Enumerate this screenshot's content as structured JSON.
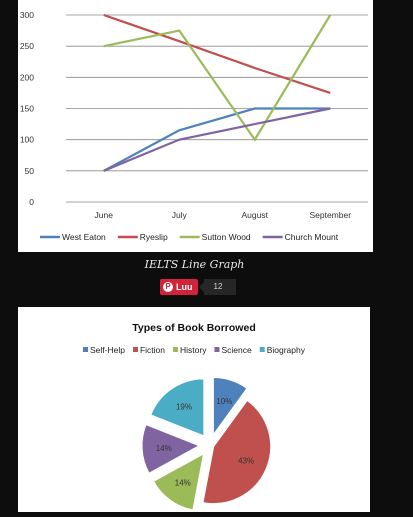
{
  "caption": "IELTS Line Graph",
  "share": {
    "label": "Luu",
    "count": "12"
  },
  "chart_data": [
    {
      "type": "line",
      "title": "",
      "xlabel": "",
      "ylabel": "",
      "categories": [
        "June",
        "July",
        "August",
        "September"
      ],
      "ylim": [
        0,
        300
      ],
      "yticks": [
        "0",
        "50",
        "100",
        "150",
        "200",
        "250",
        "300"
      ],
      "grid": true,
      "legend": "bottom",
      "series": [
        {
          "name": "West Eaton",
          "color": "#4f81bd",
          "values": [
            50,
            115,
            150,
            150
          ]
        },
        {
          "name": "Ryeslip",
          "color": "#c0504d",
          "values": [
            300,
            258,
            215,
            175
          ]
        },
        {
          "name": "Sutton Wood",
          "color": "#9bbb59",
          "values": [
            250,
            275,
            100,
            300
          ]
        },
        {
          "name": "Church Mount",
          "color": "#8064a2",
          "values": [
            50,
            100,
            125,
            150
          ]
        }
      ]
    },
    {
      "type": "pie",
      "title": "Types of Book Borrowed",
      "legend": "top",
      "slices": [
        {
          "name": "Self-Help",
          "value": 10,
          "label": "10%",
          "color": "#4f81bd"
        },
        {
          "name": "Fiction",
          "value": 43,
          "label": "43%",
          "color": "#c0504d"
        },
        {
          "name": "History",
          "value": 14,
          "label": "14%",
          "color": "#9bbb59"
        },
        {
          "name": "Science",
          "value": 14,
          "label": "14%",
          "color": "#8064a2"
        },
        {
          "name": "Biography",
          "value": 19,
          "label": "19%",
          "color": "#4bacc6"
        }
      ]
    }
  ]
}
